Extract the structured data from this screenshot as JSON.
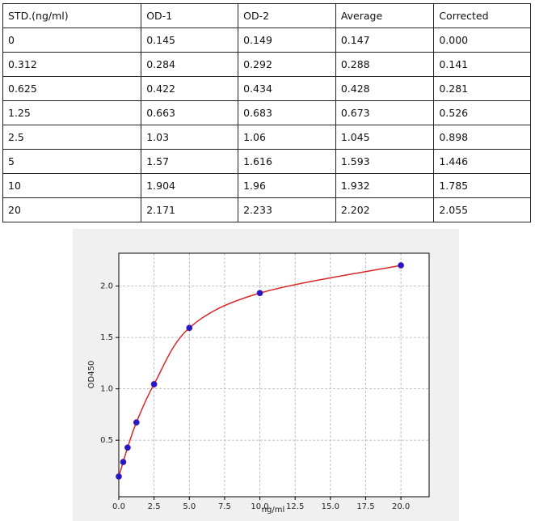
{
  "table": {
    "header": [
      "STD.(ng/ml)",
      "OD-1",
      "OD-2",
      "Average",
      "Corrected"
    ],
    "rows": [
      [
        "0",
        "0.145",
        "0.149",
        "0.147",
        "0.000"
      ],
      [
        "0.312",
        "0.284",
        "0.292",
        "0.288",
        "0.141"
      ],
      [
        "0.625",
        "0.422",
        "0.434",
        "0.428",
        "0.281"
      ],
      [
        "1.25",
        "0.663",
        "0.683",
        "0.673",
        "0.526"
      ],
      [
        "2.5",
        "1.03",
        "1.06",
        "1.045",
        "0.898"
      ],
      [
        "5",
        "1.57",
        "1.616",
        "1.593",
        "1.446"
      ],
      [
        "10",
        "1.904",
        "1.96",
        "1.932",
        "1.785"
      ],
      [
        "20",
        "2.171",
        "2.233",
        "2.202",
        "2.055"
      ]
    ]
  },
  "chart_data": {
    "type": "scatter",
    "x_label": "ng/ml",
    "y_label": "OD450",
    "x": [
      0,
      0.312,
      0.625,
      1.25,
      2.5,
      5,
      10,
      20
    ],
    "values": [
      0.147,
      0.288,
      0.428,
      0.673,
      1.045,
      1.593,
      1.932,
      2.202
    ],
    "color": "#1a1acc",
    "curve_color": "#d62828",
    "xlim": [
      0,
      22
    ],
    "ylim": [
      -0.05,
      2.32
    ],
    "xticks": [
      {
        "value": 0,
        "label": "0.0"
      },
      {
        "value": 2.5,
        "label": "2.5"
      },
      {
        "value": 5,
        "label": "5.0"
      },
      {
        "value": 7.5,
        "label": "7.5"
      },
      {
        "value": 10,
        "label": "10.0"
      },
      {
        "value": 12.5,
        "label": "12.5"
      },
      {
        "value": 15,
        "label": "15.0"
      },
      {
        "value": 17.5,
        "label": "17.5"
      },
      {
        "value": 20,
        "label": "20.0"
      }
    ],
    "yticks": [
      0.5,
      {
        "value": 1,
        "label": "1.0"
      },
      1.5,
      {
        "value": 2,
        "label": "2.0"
      }
    ],
    "grid": true
  }
}
